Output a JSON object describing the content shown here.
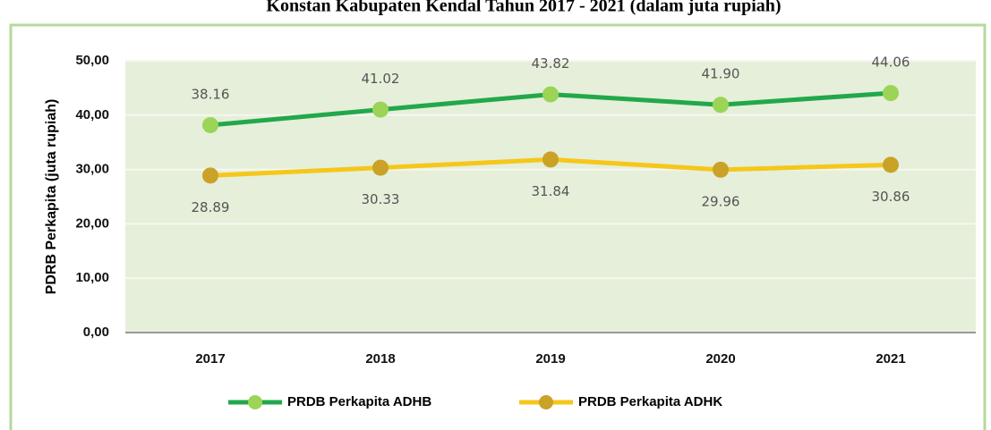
{
  "chart_data": {
    "type": "line",
    "title": "Konstan Kabupaten Kendal Tahun 2017 - 2021 (dalam juta rupiah)",
    "y_label": "PDRB Perkapita (juta rupiah)",
    "categories": [
      "2017",
      "2018",
      "2019",
      "2020",
      "2021"
    ],
    "series": [
      {
        "name": "PRDB Perkapita ADHB",
        "color": "#22a84a",
        "marker_color": "#9bd456",
        "values": [
          38.16,
          41.02,
          43.82,
          41.9,
          44.06
        ],
        "value_labels": [
          "38.16",
          "41.02",
          "43.82",
          "41.90",
          "44.06"
        ]
      },
      {
        "name": "PRDB Perkapita ADHK",
        "color": "#f5c71a",
        "marker_color": "#c9a227",
        "values": [
          28.89,
          30.33,
          31.84,
          29.96,
          30.86
        ],
        "value_labels": [
          "28.89",
          "30.33",
          "31.84",
          "29.96",
          "30.86"
        ]
      }
    ],
    "ylim": [
      0,
      50
    ],
    "yticks": [
      {
        "value": 0,
        "label": "0,00"
      },
      {
        "value": 10,
        "label": "10,00"
      },
      {
        "value": 20,
        "label": "20,00"
      },
      {
        "value": 30,
        "label": "30,00"
      },
      {
        "value": 40,
        "label": "40,00"
      },
      {
        "value": 50,
        "label": "50,00"
      }
    ],
    "grid": true,
    "legend": "bottom"
  }
}
